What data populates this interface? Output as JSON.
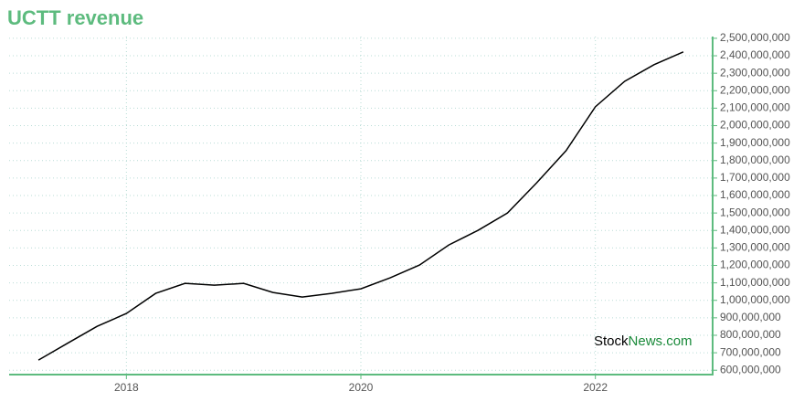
{
  "chart_data": {
    "type": "line",
    "title": "UCTT revenue",
    "watermark": {
      "first": "Stock",
      "second": "News.com"
    },
    "x": [
      2017.25,
      2017.5,
      2017.75,
      2018,
      2018.25,
      2018.5,
      2018.75,
      2019,
      2019.25,
      2019.5,
      2019.75,
      2020,
      2020.25,
      2020.5,
      2020.75,
      2021,
      2021.25,
      2021.5,
      2021.75,
      2022,
      2022.25,
      2022.5,
      2022.75
    ],
    "series": [
      {
        "name": "Revenue",
        "color": "#000000",
        "values": [
          658000000,
          755000000,
          851000000,
          925000000,
          1040000000,
          1097000000,
          1087000000,
          1097000000,
          1045000000,
          1019000000,
          1040000000,
          1066000000,
          1129000000,
          1202000000,
          1317000000,
          1401000000,
          1500000000,
          1673000000,
          1857000000,
          2108000000,
          2254000000,
          2349000000,
          2422000000
        ]
      }
    ],
    "xlim": [
      2017,
      2023
    ],
    "xticks": [
      2018,
      2020,
      2022
    ],
    "ylim": [
      575000000,
      2510000000
    ],
    "yticks": [
      {
        "value": 600000000,
        "label": "600,000,000"
      },
      {
        "value": 700000000,
        "label": "700,000,000"
      },
      {
        "value": 800000000,
        "label": "800,000,000"
      },
      {
        "value": 900000000,
        "label": "900,000,000"
      },
      {
        "value": 1000000000,
        "label": "1,000,000,000"
      },
      {
        "value": 1100000000,
        "label": "1,100,000,000"
      },
      {
        "value": 1200000000,
        "label": "1,200,000,000"
      },
      {
        "value": 1300000000,
        "label": "1,300,000,000"
      },
      {
        "value": 1400000000,
        "label": "1,400,000,000"
      },
      {
        "value": 1500000000,
        "label": "1,500,000,000"
      },
      {
        "value": 1600000000,
        "label": "1,600,000,000"
      },
      {
        "value": 1700000000,
        "label": "1,700,000,000"
      },
      {
        "value": 1800000000,
        "label": "1,800,000,000"
      },
      {
        "value": 1900000000,
        "label": "1,900,000,000"
      },
      {
        "value": 2000000000,
        "label": "2,000,000,000"
      },
      {
        "value": 2100000000,
        "label": "2,100,000,000"
      },
      {
        "value": 2200000000,
        "label": "2,200,000,000"
      },
      {
        "value": 2300000000,
        "label": "2,300,000,000"
      },
      {
        "value": 2400000000,
        "label": "2,400,000,000"
      },
      {
        "value": 2500000000,
        "label": "2,500,000,000"
      }
    ],
    "grid": true,
    "axis_color": "#5dbb7e"
  }
}
